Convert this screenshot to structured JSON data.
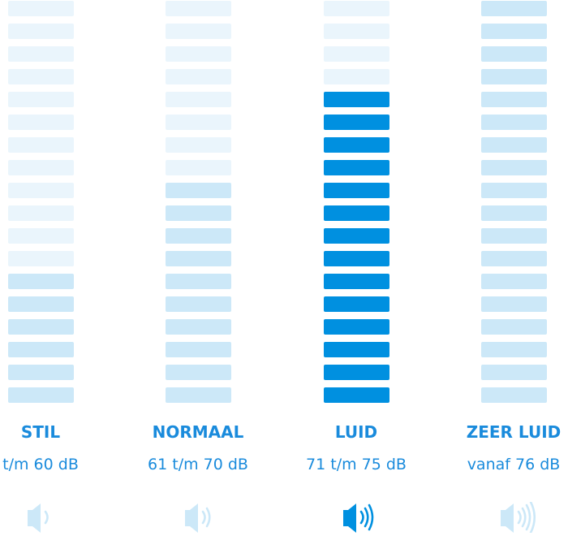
{
  "colors": {
    "inactive": "#eaf5fc",
    "level": "#cce8f8",
    "active": "#0090e0",
    "text": "#1a8bdc",
    "icon_inactive": "#cce8f8",
    "icon_active": "#0090e0"
  },
  "total_segments": 18,
  "levels": [
    {
      "title": "STIL",
      "range": "t/m 60 dB",
      "filled_segments": 6,
      "active": false,
      "icon": "speaker-1-wave-icon",
      "waves": 1
    },
    {
      "title": "NORMAAL",
      "range": "61 t/m 70 dB",
      "filled_segments": 10,
      "active": false,
      "icon": "speaker-2-waves-icon",
      "waves": 2
    },
    {
      "title": "LUID",
      "range": "71 t/m 75 dB",
      "filled_segments": 14,
      "active": true,
      "icon": "speaker-3-waves-icon",
      "waves": 3
    },
    {
      "title": "ZEER LUID",
      "range": "vanaf 76 dB",
      "filled_segments": 18,
      "active": false,
      "icon": "speaker-4-waves-icon",
      "waves": 4
    }
  ]
}
